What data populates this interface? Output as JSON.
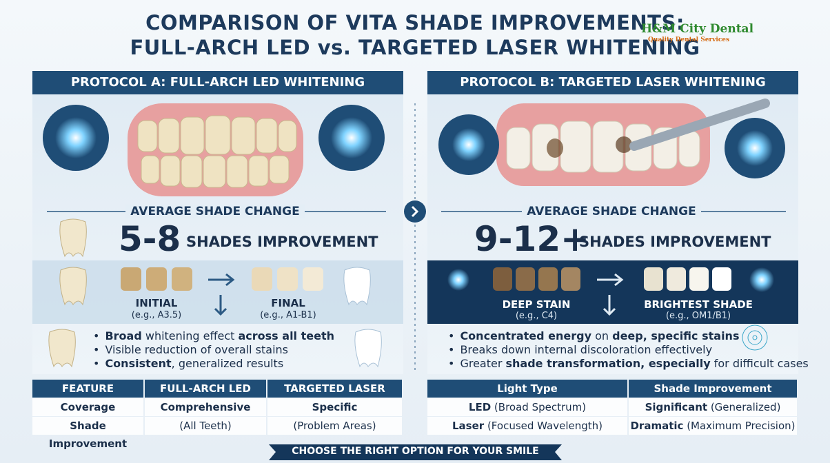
{
  "header": {
    "title_line1": "COMPARISON OF VITA SHADE IMPROVEMENTS:",
    "title_line2": "FULL-ARCH LED vs. TARGETED LASER WHITENING",
    "logo_name": "H&M City Dental",
    "logo_tagline": "Quality Dental Services"
  },
  "protocol_a": {
    "title": "PROTOCOL A: FULL-ARCH LED WHITENING",
    "section_label": "AVERAGE SHADE CHANGE",
    "shade_range": "5-8",
    "shade_text": "SHADES IMPROVEMENT",
    "initial_label": "INITIAL",
    "initial_example": "(e.g., A3.5)",
    "final_label": "FINAL",
    "final_example": "(e.g., A1-B1)",
    "bullets": [
      [
        {
          "text": "Broad",
          "bold": true
        },
        {
          "text": " whitening effect ",
          "bold": false
        },
        {
          "text": "across all teeth",
          "bold": true
        }
      ],
      [
        {
          "text": "Visible reduction of overall stains",
          "bold": false
        }
      ],
      [
        {
          "text": "Consistent",
          "bold": true
        },
        {
          "text": ", generalized results",
          "bold": false
        }
      ]
    ],
    "table": {
      "headers": [
        "FEATURE",
        "FULL-ARCH LED",
        "TARGETED LASER"
      ],
      "rows": [
        [
          "Coverage",
          "Comprehensive",
          "Specific"
        ],
        [
          "Shade Improvement",
          "(All Teeth)",
          "(Problem Areas)"
        ]
      ]
    }
  },
  "protocol_b": {
    "title": "PROTOCOL B: TARGETED LASER WHITENING",
    "section_label": "AVERAGE SHADE CHANGE",
    "shade_range": "9-12+",
    "shade_text": "SHADES IMPROVEMENT",
    "initial_label": "DEEP STAIN",
    "initial_example": "(e.g., C4)",
    "final_label": "BRIGHTEST SHADE",
    "final_example": "(e.g., OM1/B1)",
    "bullets": [
      [
        {
          "text": "Concentrated energy",
          "bold": true
        },
        {
          "text": " on ",
          "bold": false
        },
        {
          "text": "deep, specific stains",
          "bold": true
        }
      ],
      [
        {
          "text": "Breaks down internal discoloration effectively",
          "bold": false
        }
      ],
      [
        {
          "text": "Greater ",
          "bold": false
        },
        {
          "text": "shade transformation, especially",
          "bold": true
        },
        {
          "text": " for difficult cases",
          "bold": false
        }
      ]
    ],
    "table": {
      "headers": [
        "Light Type",
        "Shade Improvement"
      ],
      "rows": [
        [
          [
            {
              "text": "LED",
              "bold": true
            },
            {
              "text": " (Broad Spectrum)",
              "bold": false
            }
          ],
          [
            {
              "text": "Significant",
              "bold": true
            },
            {
              "text": " (Generalized)",
              "bold": false
            }
          ]
        ],
        [
          [
            {
              "text": "Laser",
              "bold": true
            },
            {
              "text": " (Focused Wavelength)",
              "bold": false
            }
          ],
          [
            {
              "text": "Dramatic",
              "bold": true
            },
            {
              "text": " (Maximum Precision)",
              "bold": false
            }
          ]
        ]
      ]
    }
  },
  "footer": {
    "banner": "CHOOSE THE RIGHT OPTION FOR YOUR SMILE"
  }
}
